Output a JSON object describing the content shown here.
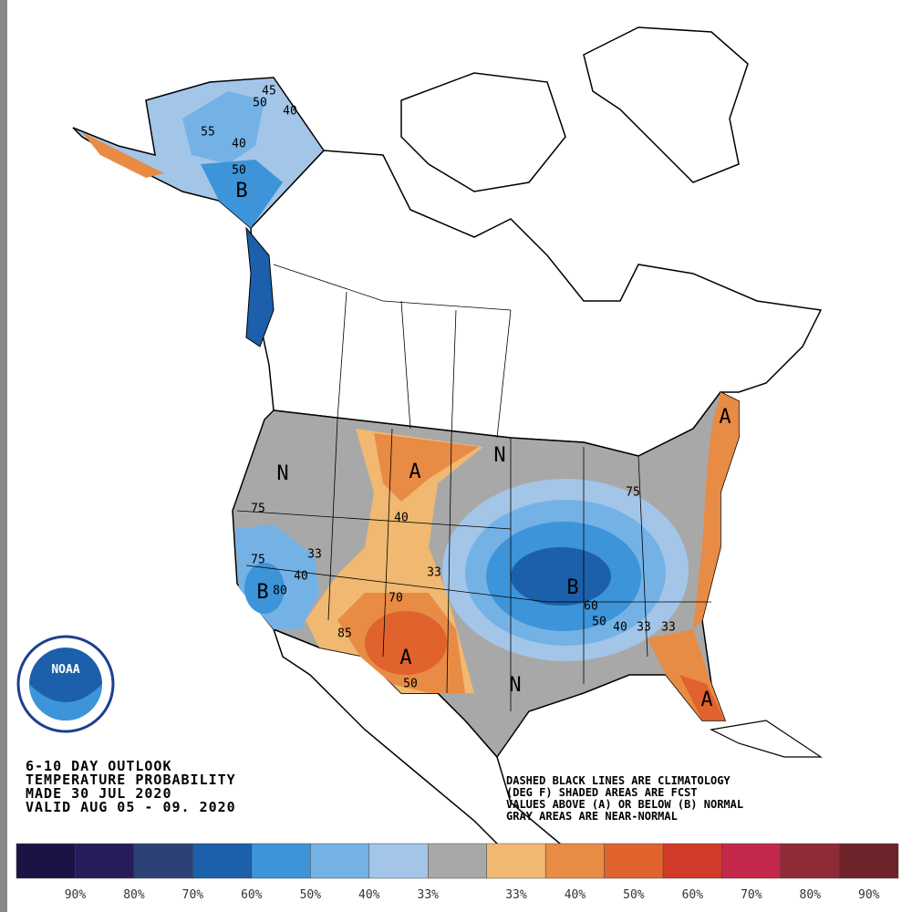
{
  "logo": {
    "text": "NOAA"
  },
  "title_block": {
    "lines": [
      "6-10 DAY OUTLOOK",
      "TEMPERATURE PROBABILITY",
      "MADE  30 JUL 2020",
      "VALID   AUG 05 - 09. 2020"
    ]
  },
  "note": {
    "lines": [
      "DASHED BLACK LINES ARE CLIMATOLOGY",
      "(DEG F) SHADED AREAS ARE FCST",
      "VALUES ABOVE (A) OR BELOW (B) NORMAL",
      "GRAY AREAS ARE NEAR-NORMAL"
    ]
  },
  "map_labels": [
    "45",
    "50",
    "40",
    "55",
    "40",
    "50",
    "B",
    "N",
    "A",
    "N",
    "40",
    "75",
    "33",
    "75",
    "40",
    "B",
    "80",
    "33",
    "70",
    "85",
    "A",
    "50",
    "N",
    "B",
    "60",
    "50",
    "40",
    "33",
    "33",
    "A",
    "A",
    "75"
  ],
  "legend": {
    "colors": [
      "#1a1446",
      "#261c5a",
      "#2c4277",
      "#1c5faa",
      "#3d94d9",
      "#74b2e6",
      "#a3c5e8",
      "#a8a8a8",
      "#f0b870",
      "#e88b45",
      "#e0632d",
      "#d23a2a",
      "#c4284a",
      "#8e2b36",
      "#6e2229"
    ],
    "labels": [
      "90%",
      "80%",
      "70%",
      "60%",
      "50%",
      "40%",
      "33%",
      "33%",
      "40%",
      "50%",
      "60%",
      "70%",
      "80%",
      "90%"
    ]
  }
}
